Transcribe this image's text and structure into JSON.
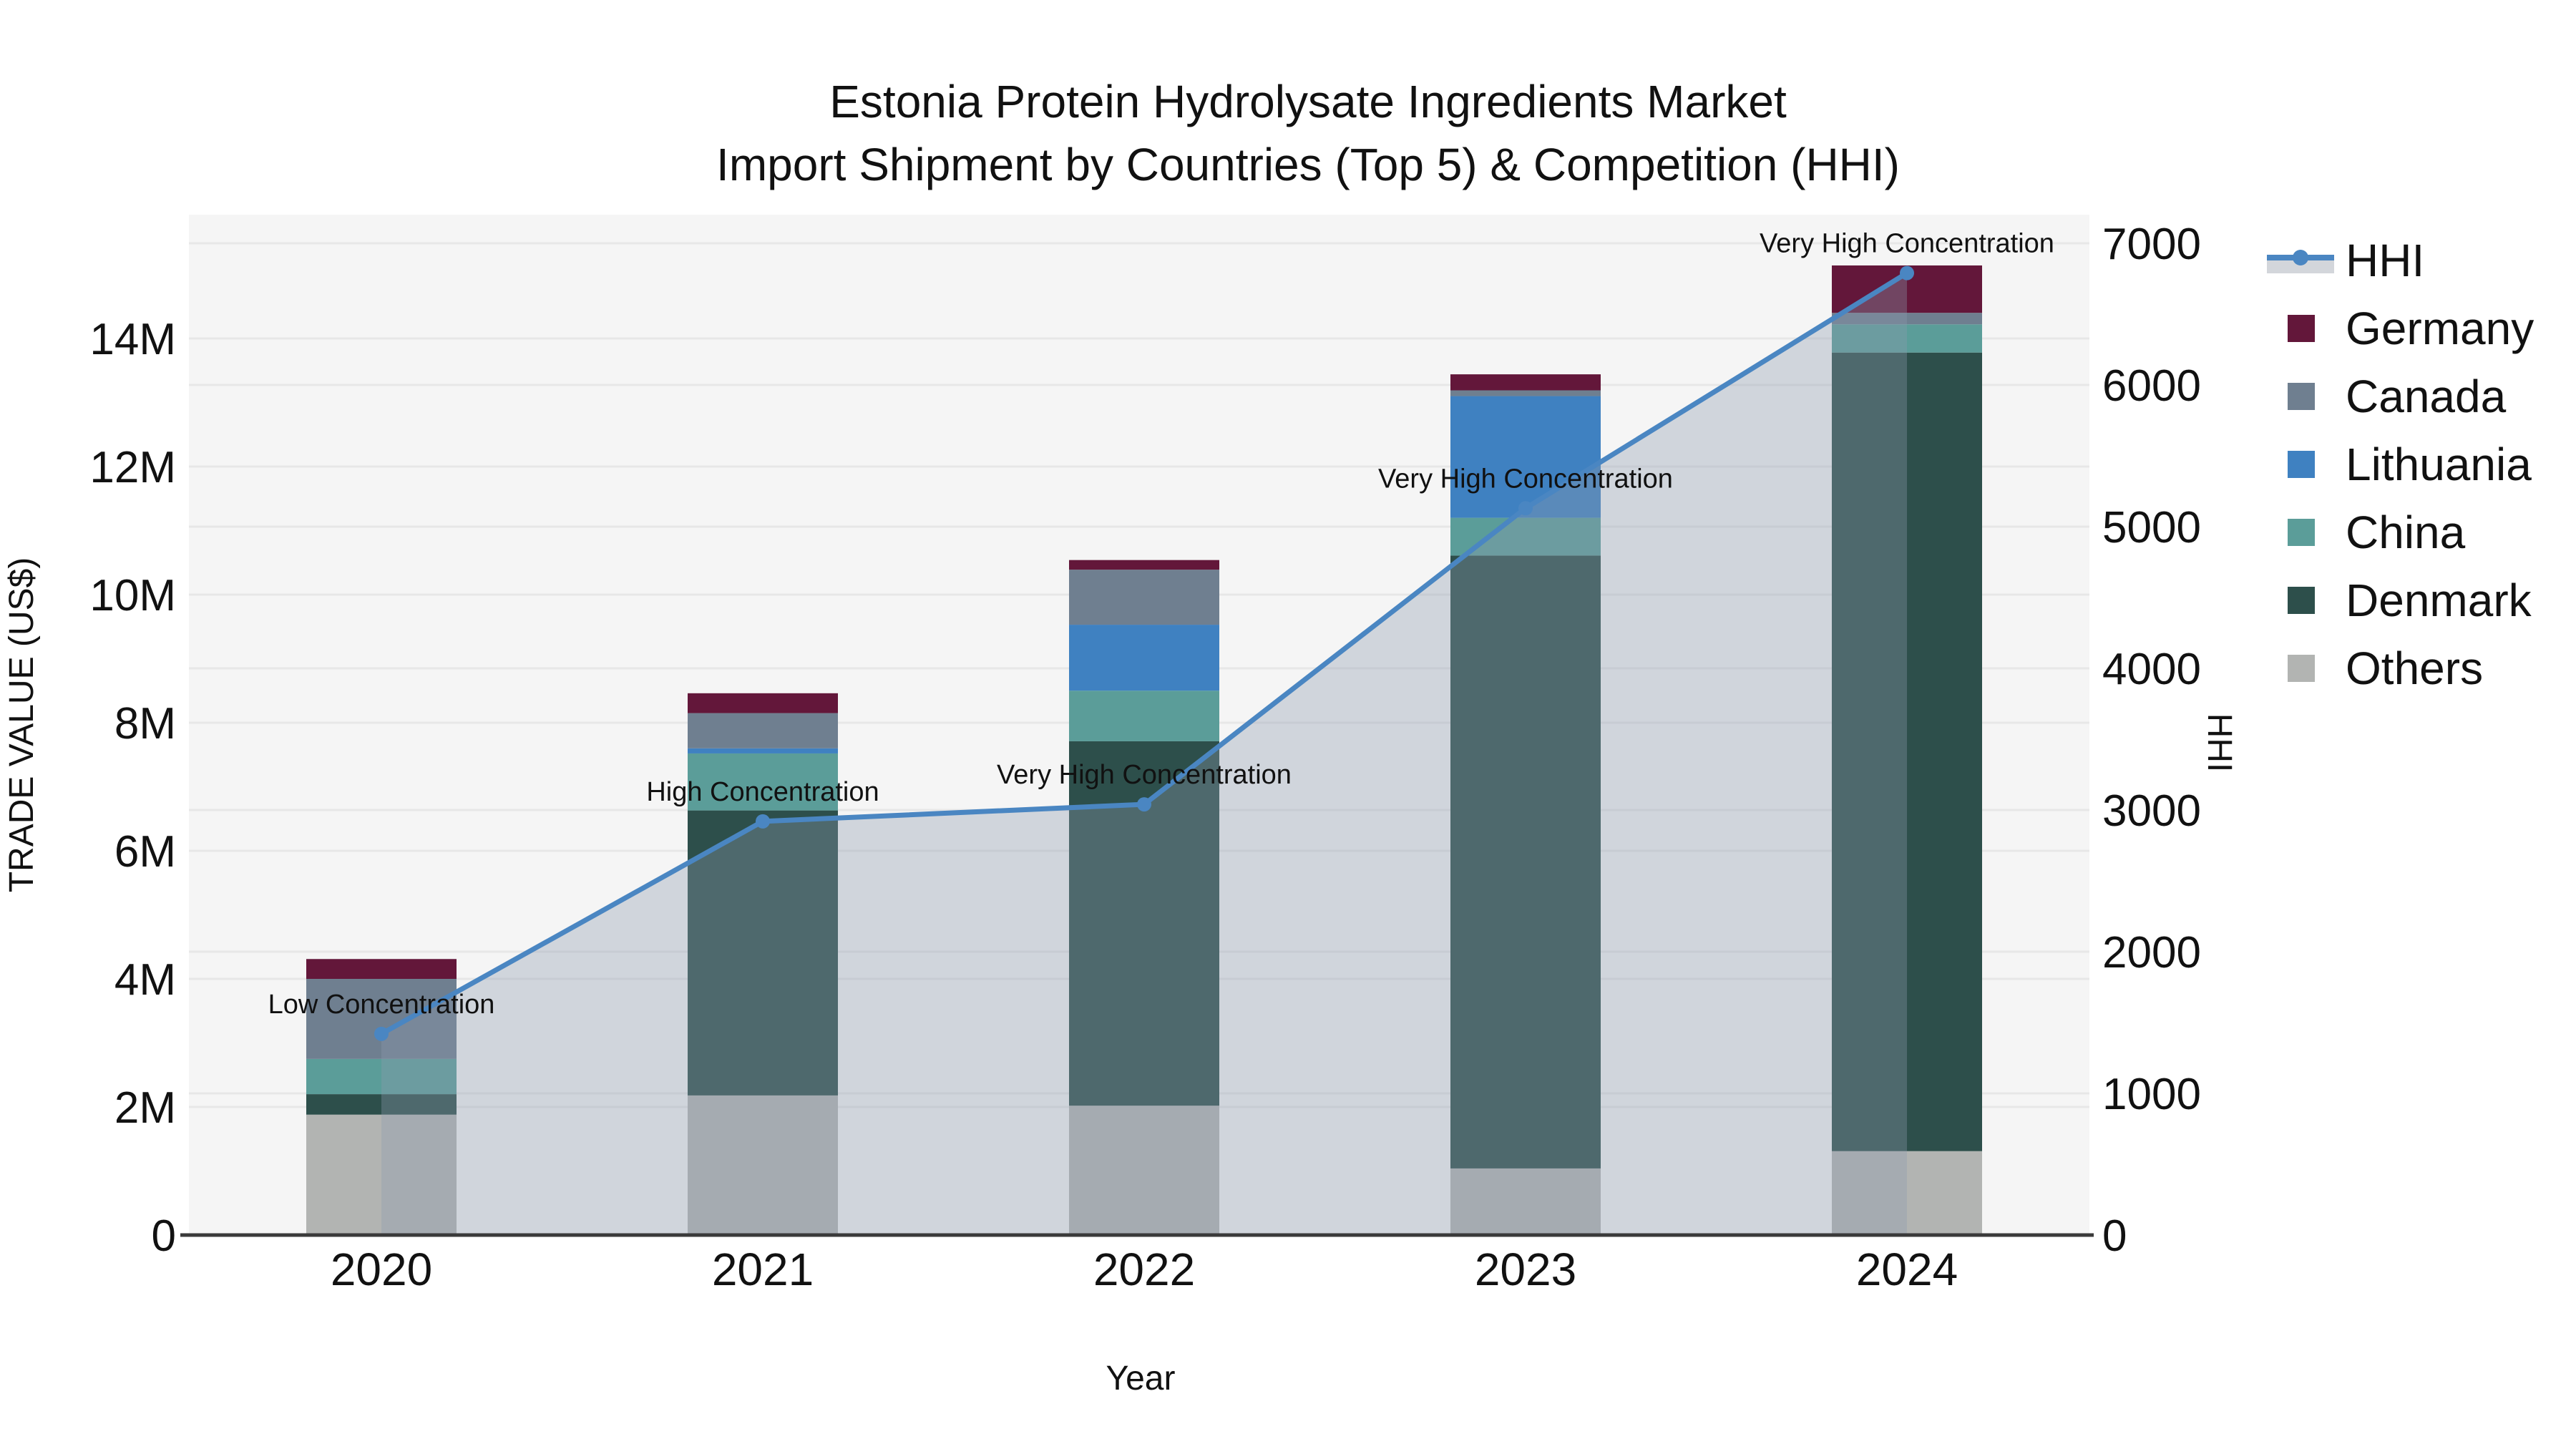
{
  "title": {
    "line1": "Estonia Protein Hydrolysate Ingredients Market",
    "line2": "Import Shipment by Countries (Top 5) & Competition (HHI)"
  },
  "axes": {
    "x_title": "Year",
    "x_ticks": [
      "2020",
      "2021",
      "2022",
      "2023",
      "2024"
    ],
    "y_left_title": "TRADE VALUE (US$)",
    "y_left_ticks": [
      "0",
      "2M",
      "4M",
      "6M",
      "8M",
      "10M",
      "12M",
      "14M"
    ],
    "y_left_tick_values_millions": [
      0,
      2,
      4,
      6,
      8,
      10,
      12,
      14
    ],
    "y_right_title": "HHI",
    "y_right_ticks": [
      "0",
      "1000",
      "2000",
      "3000",
      "4000",
      "5000",
      "6000",
      "7000"
    ],
    "y_right_tick_values": [
      0,
      1000,
      2000,
      3000,
      4000,
      5000,
      6000,
      7000
    ]
  },
  "legend": {
    "items": [
      {
        "label": "HHI",
        "swatch": "line-marker",
        "color": "#4a86c2",
        "fill": "#d3d6db"
      },
      {
        "label": "Germany",
        "swatch": "square",
        "color": "#63173a"
      },
      {
        "label": "Canada",
        "swatch": "square",
        "color": "#6f7f90"
      },
      {
        "label": "Lithuania",
        "swatch": "square",
        "color": "#3f81c1"
      },
      {
        "label": "China",
        "swatch": "square",
        "color": "#5b9d99"
      },
      {
        "label": "Denmark",
        "swatch": "square",
        "color": "#2d4f4b"
      },
      {
        "label": "Others",
        "swatch": "square",
        "color": "#b2b4b2"
      }
    ]
  },
  "annotations": [
    {
      "year": "2020",
      "text": "Low Concentration"
    },
    {
      "year": "2021",
      "text": "High Concentration"
    },
    {
      "year": "2022",
      "text": "Very High Concentration"
    },
    {
      "year": "2023",
      "text": "Very High Concentration"
    },
    {
      "year": "2024",
      "text": "Very High Concentration"
    }
  ],
  "colors": {
    "plot_background": "#f5f5f5",
    "gridline": "#e7e7e7",
    "axis_line": "#3a3a3a",
    "hhi_line": "#4a86c2",
    "hhi_area_fill": "rgba(140,155,175,0.35)"
  },
  "chart_data": [
    {
      "type": "bar",
      "stacked": true,
      "categories": [
        "2020",
        "2021",
        "2022",
        "2023",
        "2024"
      ],
      "unit": "million US$",
      "axis": "left",
      "ylabel": "TRADE VALUE (US$)",
      "ylim_millions": [
        0,
        16
      ],
      "stack_order_bottom_to_top": [
        "Others",
        "Denmark",
        "China",
        "Lithuania",
        "Canada",
        "Germany"
      ],
      "series": [
        {
          "name": "Others",
          "color": "#b2b4b2",
          "values": [
            1.88,
            2.18,
            2.02,
            1.04,
            1.31
          ]
        },
        {
          "name": "Denmark",
          "color": "#2d4f4b",
          "values": [
            0.32,
            4.45,
            5.69,
            9.57,
            12.47
          ]
        },
        {
          "name": "China",
          "color": "#5b9d99",
          "values": [
            0.55,
            0.89,
            0.79,
            0.59,
            0.44
          ]
        },
        {
          "name": "Lithuania",
          "color": "#3f81c1",
          "values": [
            0.0,
            0.08,
            1.03,
            1.9,
            0.0
          ]
        },
        {
          "name": "Canada",
          "color": "#6f7f90",
          "values": [
            1.25,
            0.55,
            0.86,
            0.09,
            0.18
          ]
        },
        {
          "name": "Germany",
          "color": "#63173a",
          "values": [
            0.31,
            0.31,
            0.15,
            0.25,
            0.74
          ]
        }
      ],
      "totals_millions": [
        4.31,
        8.46,
        10.54,
        13.44,
        15.14
      ]
    },
    {
      "type": "line",
      "name": "HHI",
      "axis": "right",
      "ylabel": "HHI",
      "ylim": [
        0,
        7234
      ],
      "x": [
        "2020",
        "2021",
        "2022",
        "2023",
        "2024"
      ],
      "values": [
        1420,
        2920,
        3040,
        5130,
        6790
      ],
      "color": "#4a86c2",
      "marker": "circle",
      "area_fill": "rgba(140,155,175,0.35)",
      "point_labels": [
        "Low Concentration",
        "High Concentration",
        "Very High Concentration",
        "Very High Concentration",
        "Very High Concentration"
      ]
    }
  ]
}
